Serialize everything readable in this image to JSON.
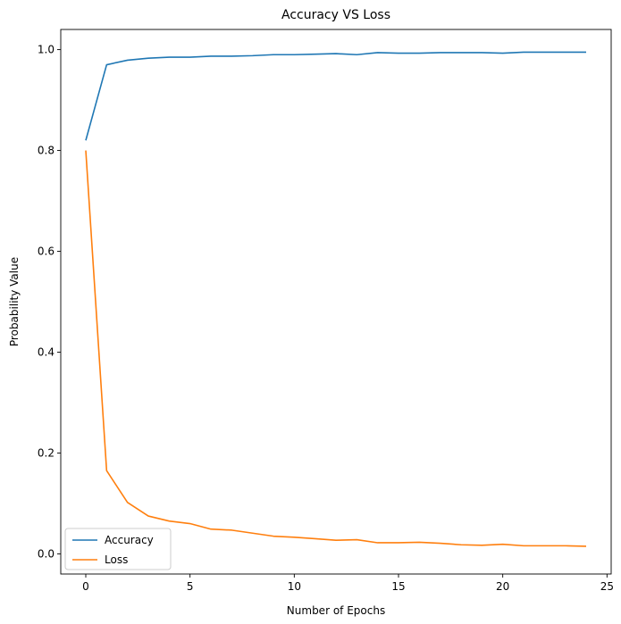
{
  "chart_data": {
    "type": "line",
    "title": "Accuracy VS Loss",
    "xlabel": "Number of Epochs",
    "ylabel": "Probability Value",
    "xlim": [
      -1.2,
      25.2
    ],
    "ylim": [
      -0.04,
      1.04
    ],
    "xticks": [
      0,
      5,
      10,
      15,
      20,
      25
    ],
    "yticks": [
      0.0,
      0.2,
      0.4,
      0.6,
      0.8,
      1.0
    ],
    "ytick_labels": [
      "0.0",
      "0.2",
      "0.4",
      "0.6",
      "0.8",
      "1.0"
    ],
    "grid": false,
    "legend_position": "lower-left",
    "x": [
      0,
      1,
      2,
      3,
      4,
      5,
      6,
      7,
      8,
      9,
      10,
      11,
      12,
      13,
      14,
      15,
      16,
      17,
      18,
      19,
      20,
      21,
      22,
      23,
      24
    ],
    "series": [
      {
        "name": "Accuracy",
        "color": "#1f77b4",
        "values": [
          0.82,
          0.97,
          0.979,
          0.983,
          0.985,
          0.985,
          0.987,
          0.987,
          0.988,
          0.99,
          0.99,
          0.991,
          0.992,
          0.99,
          0.994,
          0.993,
          0.993,
          0.994,
          0.994,
          0.994,
          0.993,
          0.995,
          0.995,
          0.995,
          0.995
        ]
      },
      {
        "name": "Loss",
        "color": "#ff7f0e",
        "values": [
          0.8,
          0.165,
          0.102,
          0.075,
          0.065,
          0.06,
          0.049,
          0.047,
          0.041,
          0.035,
          0.033,
          0.03,
          0.027,
          0.028,
          0.022,
          0.022,
          0.023,
          0.021,
          0.018,
          0.017,
          0.019,
          0.016,
          0.016,
          0.016,
          0.015
        ]
      }
    ]
  }
}
